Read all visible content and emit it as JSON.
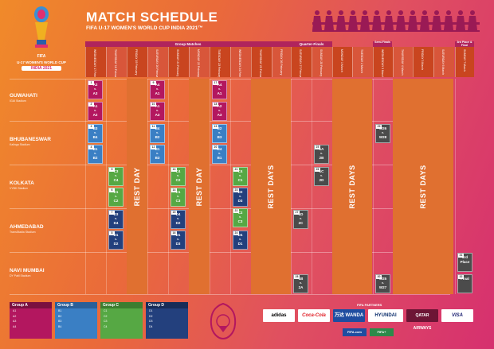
{
  "header": {
    "title": "MATCH SCHEDULE",
    "subtitle": "FIFA U-17 WOMEN'S WORLD CUP INDIA 2021™"
  },
  "logo": {
    "line1": "U-17 WOMEN'S WORLD CUP",
    "line2": "INDIA 2021",
    "brand": "FIFA"
  },
  "segments": {
    "group": "Group Matches",
    "qf": "Quarter-Finals",
    "sf": "Semi-Finals",
    "final": "3rd Place & Final"
  },
  "days": [
    "WEDNESDAY 17 February",
    "THURSDAY 18 February",
    "FRIDAY 19 February",
    "SATURDAY 20 February",
    "SUNDAY 21 February",
    "MONDAY 22 February",
    "TUESDAY 23 February",
    "WEDNESDAY 24 February",
    "THURSDAY 25 February",
    "FRIDAY 26 February",
    "SATURDAY 27 February",
    "SUNDAY 28 February",
    "MONDAY 1 March",
    "TUESDAY 2 March",
    "WEDNESDAY 3 March",
    "THURSDAY 4 March",
    "FRIDAY 5 March",
    "SATURDAY 6 March",
    "SUNDAY 7 March"
  ],
  "venues": [
    {
      "city": "GUWAHATI",
      "stadium": "IGAI Stadium"
    },
    {
      "city": "BHUBANESWAR",
      "stadium": "Kalinga Stadium"
    },
    {
      "city": "KOLKATA",
      "stadium": "VYBK Stadium"
    },
    {
      "city": "AHMEDABAD",
      "stadium": "TransStadia Stadium"
    },
    {
      "city": "NAVI MUMBAI",
      "stadium": "DY Patil Stadium"
    }
  ],
  "rest": {
    "day": "REST DAY",
    "days": "REST DAYS"
  },
  "matches": [
    {
      "n": "1",
      "t": "A2",
      "b": "A3"
    },
    {
      "n": "2",
      "t": "A1",
      "b": "A2"
    },
    {
      "n": "9",
      "t": "A4",
      "b": "A1"
    },
    {
      "n": "10",
      "t": "A1",
      "b": "A3"
    },
    {
      "n": "17",
      "t": "A4",
      "b": "A1"
    },
    {
      "n": "18",
      "t": "A2",
      "b": "A3"
    },
    {
      "n": "3",
      "t": "B3",
      "b": "B4"
    },
    {
      "n": "4",
      "t": "B1",
      "b": "B2"
    },
    {
      "n": "11",
      "t": "B4",
      "b": "B2"
    },
    {
      "n": "12",
      "t": "B1",
      "b": "B3"
    },
    {
      "n": "19",
      "t": "B2",
      "b": "B3"
    },
    {
      "n": "20",
      "t": "B4",
      "b": "B1"
    },
    {
      "n": "5",
      "t": "C3",
      "b": "C4"
    },
    {
      "n": "6",
      "t": "C1",
      "b": "C2"
    },
    {
      "n": "13",
      "t": "C4",
      "b": "C2"
    },
    {
      "n": "14",
      "t": "C1",
      "b": "C3"
    },
    {
      "n": "21",
      "t": "C4",
      "b": "C1"
    },
    {
      "n": "22",
      "t": "C2",
      "b": "C3"
    },
    {
      "n": "7",
      "t": "D3",
      "b": "D4"
    },
    {
      "n": "8",
      "t": "D1",
      "b": "D2"
    },
    {
      "n": "15",
      "t": "D4",
      "b": "D2"
    },
    {
      "n": "16",
      "t": "D1",
      "b": "D3"
    },
    {
      "n": "23",
      "t": "D2",
      "b": "D3"
    },
    {
      "n": "24",
      "t": "D4",
      "b": "D1"
    },
    {
      "n": "25",
      "t": "1A",
      "b": "2B"
    },
    {
      "n": "26",
      "t": "1C",
      "b": "2D"
    },
    {
      "n": "27",
      "t": "1D",
      "b": "2C"
    },
    {
      "n": "28",
      "t": "1B",
      "b": "2A"
    },
    {
      "n": "29",
      "t": "W26",
      "b": "W28"
    },
    {
      "n": "30",
      "t": "W25",
      "b": "W27"
    },
    {
      "n": "31",
      "t": "3rd",
      "b": "Place"
    },
    {
      "n": "32",
      "t": "Final",
      "b": ""
    }
  ],
  "vs": "v.",
  "groups": [
    {
      "name": "Group A",
      "items": [
        "A1",
        "A2",
        "A3",
        "A4"
      ],
      "color": "#b3175f"
    },
    {
      "name": "Group B",
      "items": [
        "B1",
        "B2",
        "B3",
        "B4"
      ],
      "color": "#3a7fc4"
    },
    {
      "name": "Group C",
      "items": [
        "C1",
        "C2",
        "C3",
        "C4"
      ],
      "color": "#56a844"
    },
    {
      "name": "Group D",
      "items": [
        "D1",
        "D2",
        "D3",
        "D4"
      ],
      "color": "#23407d"
    }
  ],
  "partners_label": "FIFA PARTNERS",
  "partners": [
    "adidas",
    "Coca-Cola",
    "万达 WANDA",
    "HYUNDAI",
    "QATAR AIRWAYS",
    "VISA"
  ],
  "partners2": [
    "FIFA.com",
    "FIFA+"
  ]
}
